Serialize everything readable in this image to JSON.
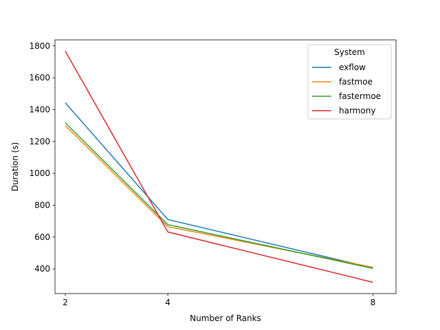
{
  "chart_data": {
    "type": "line",
    "title": "",
    "xlabel": "Number of Ranks",
    "ylabel": "Duration (s)",
    "x": [
      2,
      4,
      8
    ],
    "xticks": [
      2,
      4,
      8
    ],
    "xlim": [
      1.8,
      8.45
    ],
    "ylim": [
      245,
      1838
    ],
    "yticks": [
      400,
      600,
      800,
      1000,
      1200,
      1400,
      1600,
      1800
    ],
    "grid": false,
    "legend": {
      "title": "System",
      "placement": "top-right"
    },
    "series": [
      {
        "name": "exflow",
        "color": "#1f77b4",
        "values": [
          1443,
          710,
          406
        ]
      },
      {
        "name": "fastmoe",
        "color": "#ff7f0e",
        "values": [
          1300,
          665,
          410
        ]
      },
      {
        "name": "fastermoe",
        "color": "#2ca02c",
        "values": [
          1318,
          678,
          403
        ]
      },
      {
        "name": "harmony",
        "color": "#d62728",
        "values": [
          1768,
          632,
          316
        ]
      }
    ]
  }
}
